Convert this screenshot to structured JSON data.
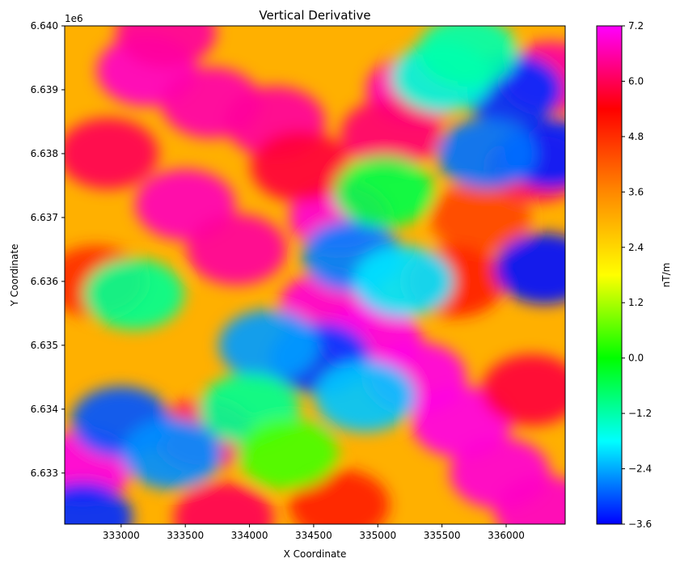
{
  "chart_data": {
    "type": "heatmap",
    "title": "Vertical Derivative",
    "xlabel": "X Coordinate",
    "ylabel": "Y Coordinate",
    "y_offset_label": "1e6",
    "xlim": [
      332560,
      336460
    ],
    "ylim": [
      6.6322,
      6.64
    ],
    "x_ticks": [
      {
        "value": 333000,
        "label": "333000"
      },
      {
        "value": 333500,
        "label": "333500"
      },
      {
        "value": 334000,
        "label": "334000"
      },
      {
        "value": 334500,
        "label": "334500"
      },
      {
        "value": 335000,
        "label": "335000"
      },
      {
        "value": 335500,
        "label": "335500"
      },
      {
        "value": 336000,
        "label": "336000"
      }
    ],
    "y_ticks": [
      {
        "value": 6.633,
        "label": "6.633"
      },
      {
        "value": 6.634,
        "label": "6.634"
      },
      {
        "value": 6.635,
        "label": "6.635"
      },
      {
        "value": 6.636,
        "label": "6.636"
      },
      {
        "value": 6.637,
        "label": "6.637"
      },
      {
        "value": 6.638,
        "label": "6.638"
      },
      {
        "value": 6.639,
        "label": "6.639"
      },
      {
        "value": 6.64,
        "label": "6.640"
      }
    ],
    "colorbar": {
      "label": "nT/m",
      "range": [
        -3.6,
        7.2
      ],
      "ticks": [
        {
          "value": -3.6,
          "label": "−3.6"
        },
        {
          "value": -2.4,
          "label": "−2.4"
        },
        {
          "value": -1.2,
          "label": "−1.2"
        },
        {
          "value": 0.0,
          "label": "0.0"
        },
        {
          "value": 1.2,
          "label": "1.2"
        },
        {
          "value": 2.4,
          "label": "2.4"
        },
        {
          "value": 3.6,
          "label": "3.6"
        },
        {
          "value": 4.8,
          "label": "4.8"
        },
        {
          "value": 6.0,
          "label": "6.0"
        },
        {
          "value": 7.2,
          "label": "7.2"
        }
      ],
      "colors": [
        "#0000ff",
        "#00ffff",
        "#00ff00",
        "#ffff00",
        "#ff8800",
        "#ff0000",
        "#ff00ff"
      ]
    },
    "anomalies": [
      {
        "x": 333200,
        "y": 6.6393,
        "value": 6.8
      },
      {
        "x": 333700,
        "y": 6.6388,
        "value": 6.6
      },
      {
        "x": 334200,
        "y": 6.6385,
        "value": 6.5
      },
      {
        "x": 333500,
        "y": 6.6372,
        "value": 6.7
      },
      {
        "x": 333900,
        "y": 6.6365,
        "value": 6.5
      },
      {
        "x": 334700,
        "y": 6.637,
        "value": 6.9
      },
      {
        "x": 335300,
        "y": 6.639,
        "value": 6.7
      },
      {
        "x": 335100,
        "y": 6.6383,
        "value": 6.2
      },
      {
        "x": 334620,
        "y": 6.6356,
        "value": 6.9
      },
      {
        "x": 334950,
        "y": 6.6351,
        "value": 7.0
      },
      {
        "x": 335300,
        "y": 6.6345,
        "value": 7.0
      },
      {
        "x": 335650,
        "y": 6.6338,
        "value": 7.0
      },
      {
        "x": 335950,
        "y": 6.633,
        "value": 6.9
      },
      {
        "x": 336300,
        "y": 6.6324,
        "value": 6.8
      },
      {
        "x": 332700,
        "y": 6.6331,
        "value": 7.0
      },
      {
        "x": 333650,
        "y": 6.6336,
        "value": 6.2
      },
      {
        "x": 332900,
        "y": 6.638,
        "value": 6.0
      },
      {
        "x": 333350,
        "y": 6.6399,
        "value": 6.5
      },
      {
        "x": 335800,
        "y": 6.637,
        "value": 4.5
      },
      {
        "x": 335600,
        "y": 6.636,
        "value": 5.0
      },
      {
        "x": 336200,
        "y": 6.6343,
        "value": 5.8
      },
      {
        "x": 336250,
        "y": 6.6378,
        "value": 6.0
      },
      {
        "x": 334400,
        "y": 6.6378,
        "value": 5.8
      },
      {
        "x": 336350,
        "y": 6.6392,
        "value": 6.5
      },
      {
        "x": 332800,
        "y": 6.636,
        "value": 4.8
      },
      {
        "x": 333800,
        "y": 6.6323,
        "value": 6.0
      },
      {
        "x": 334700,
        "y": 6.6325,
        "value": 5.0
      },
      {
        "x": 336050,
        "y": 6.639,
        "value": -3.3
      },
      {
        "x": 336350,
        "y": 6.638,
        "value": -3.4
      },
      {
        "x": 336300,
        "y": 6.6362,
        "value": -3.5
      },
      {
        "x": 335850,
        "y": 6.638,
        "value": -2.8
      },
      {
        "x": 333000,
        "y": 6.6338,
        "value": -3.0
      },
      {
        "x": 332700,
        "y": 6.6323,
        "value": -3.3
      },
      {
        "x": 333400,
        "y": 6.6333,
        "value": -2.6
      },
      {
        "x": 334550,
        "y": 6.6348,
        "value": -3.2
      },
      {
        "x": 334150,
        "y": 6.635,
        "value": -2.5
      },
      {
        "x": 334900,
        "y": 6.6342,
        "value": -2.2
      },
      {
        "x": 334800,
        "y": 6.6364,
        "value": -2.7
      },
      {
        "x": 335200,
        "y": 6.636,
        "value": -2.0
      },
      {
        "x": 335050,
        "y": 6.6374,
        "value": -0.5
      },
      {
        "x": 333100,
        "y": 6.6358,
        "value": -1.0
      },
      {
        "x": 335500,
        "y": 6.6392,
        "value": -1.5
      },
      {
        "x": 335700,
        "y": 6.6396,
        "value": -1.2
      },
      {
        "x": 334000,
        "y": 6.634,
        "value": -1.0
      },
      {
        "x": 334300,
        "y": 6.6333,
        "value": 0.5
      }
    ]
  }
}
